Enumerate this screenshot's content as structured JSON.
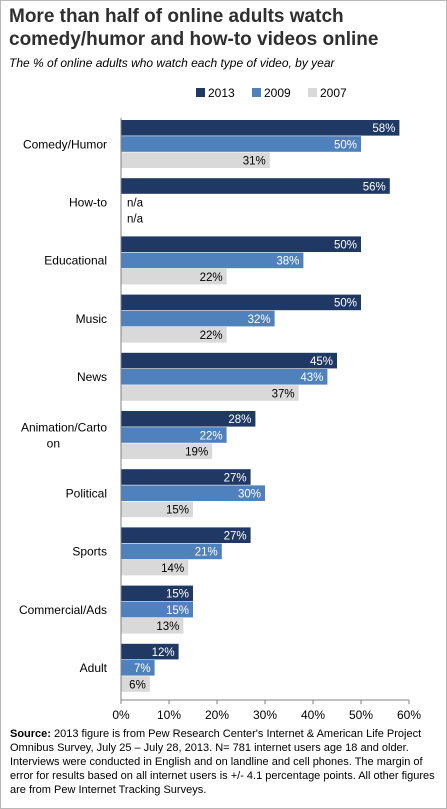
{
  "title": "More than half of online adults watch comedy/humor and how-to videos online",
  "subtitle": "The % of online adults who watch each type of video, by year",
  "note": {
    "label": "Source:",
    "text": " 2013 figure is from Pew Research Center's Internet & American Life Project Omnibus Survey, July 25 – July 28, 2013. N= 781 internet users age 18 and older. Interviews were conducted in English and on landline and cell phones. The margin of error for results based on all internet users is +/- 4.1 percentage points.  All other figures are from Pew Internet Tracking Surveys."
  },
  "colors": {
    "2013": "#1f3864",
    "2009": "#4f81bd",
    "2007": "#d9d9d9",
    "axis": "#808080"
  },
  "chart_data": {
    "type": "bar",
    "orientation": "horizontal",
    "title": "More than half of online adults watch comedy/humor and how-to videos online",
    "subtitle": "The % of online adults who watch each type of video, by year",
    "categories": [
      [
        "Comedy/Humor"
      ],
      [
        "How-to"
      ],
      [
        "Educational"
      ],
      [
        "Music"
      ],
      [
        "News"
      ],
      [
        "Animation/Carto",
        "on"
      ],
      [
        "Political"
      ],
      [
        "Sports"
      ],
      [
        "Commercial/Ads"
      ],
      [
        "Adult"
      ]
    ],
    "series": [
      {
        "name": "2013",
        "values": [
          58,
          56,
          50,
          50,
          45,
          28,
          27,
          27,
          15,
          12
        ],
        "labels": [
          "58%",
          "56%",
          "50%",
          "50%",
          "45%",
          "28%",
          "27%",
          "27%",
          "15%",
          "12%"
        ]
      },
      {
        "name": "2009",
        "values": [
          50,
          null,
          38,
          32,
          43,
          22,
          30,
          21,
          15,
          7
        ],
        "labels": [
          "50%",
          "n/a",
          "38%",
          "32%",
          "43%",
          "22%",
          "30%",
          "21%",
          "15%",
          "7%"
        ]
      },
      {
        "name": "2007",
        "values": [
          31,
          null,
          22,
          22,
          37,
          19,
          15,
          14,
          13,
          6
        ],
        "labels": [
          "31%",
          "n/a",
          "22%",
          "22%",
          "37%",
          "19%",
          "15%",
          "14%",
          "13%",
          "6%"
        ]
      }
    ],
    "xlim": [
      0,
      60
    ],
    "xticks": [
      "0%",
      "10%",
      "20%",
      "30%",
      "40%",
      "50%",
      "60%"
    ],
    "legend": "top",
    "grid": false
  }
}
